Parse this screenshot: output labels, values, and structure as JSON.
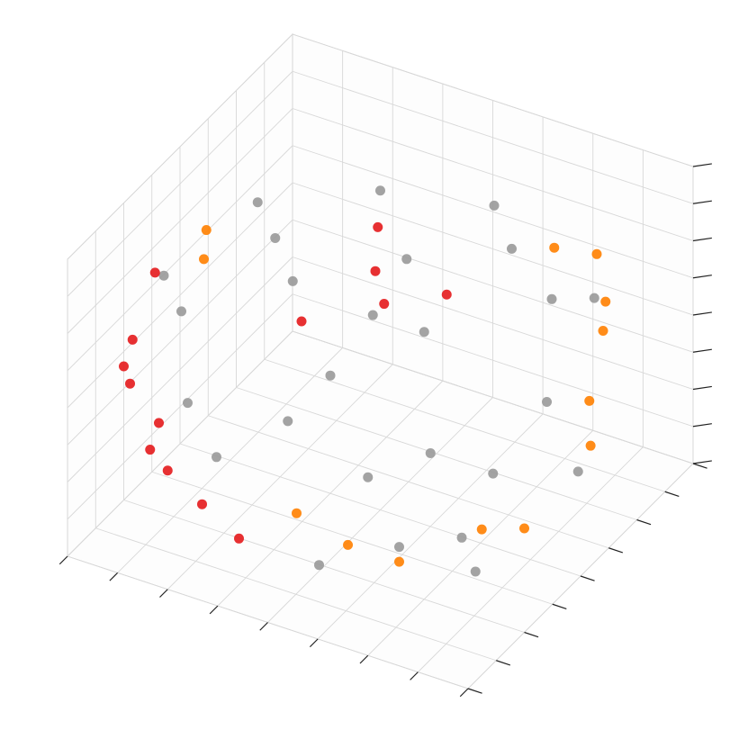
{
  "chart_data": {
    "type": "scatter3d",
    "grid": true,
    "xlim": [
      -1,
      1
    ],
    "ylim": [
      -1,
      1
    ],
    "zlim": [
      -1,
      1
    ],
    "xticks": [
      -1,
      -0.75,
      -0.5,
      -0.25,
      0,
      0.25,
      0.5,
      0.75,
      1
    ],
    "yticks": [
      -1,
      -0.75,
      -0.5,
      -0.25,
      0,
      0.25,
      0.5,
      0.75,
      1
    ],
    "zticks": [
      -1,
      -0.75,
      -0.5,
      -0.25,
      0,
      0.25,
      0.5,
      0.75,
      1
    ],
    "series": [
      {
        "color": "#999999",
        "x": [
          0.5,
          0.2,
          -0.3,
          0.8,
          0.9,
          0.1,
          -0.6,
          0.6,
          0.0,
          0.4,
          -0.2,
          1.0,
          0.7,
          -0.8,
          0.3,
          0.5,
          -0.1,
          0.9,
          1.1,
          0.6,
          -0.5,
          0.2,
          0.8,
          -0.4,
          0.3,
          0.7
        ],
        "y": [
          -0.5,
          -0.8,
          -0.4,
          0.1,
          -0.6,
          -1.0,
          -0.7,
          -0.9,
          0.0,
          0.3,
          -1.1,
          -0.3,
          -0.4,
          -0.5,
          -0.6,
          -1.0,
          -0.6,
          0.3,
          -0.2,
          0.1,
          -0.2,
          -0.9,
          -0.7,
          -1.0,
          -0.3,
          -0.8
        ],
        "z": [
          0.8,
          0.6,
          1.0,
          0.7,
          0.1,
          0.4,
          0.6,
          -0.3,
          1.15,
          1.0,
          0.1,
          0.4,
          -0.8,
          0.6,
          0.9,
          0.2,
          0.95,
          0.6,
          -0.1,
          0.95,
          1.0,
          -0.6,
          -0.3,
          0.3,
          1.05,
          0.3
        ]
      },
      {
        "color": "#ff7f00",
        "x": [
          1.0,
          1.1,
          0.9,
          1.0,
          0.6,
          0.9,
          -0.6,
          -0.7,
          0.7,
          0.4,
          1.05,
          0.2,
          0.8
        ],
        "y": [
          0.2,
          -0.1,
          0.4,
          -0.5,
          -0.9,
          -0.7,
          -0.5,
          -0.3,
          0.3,
          -1.0,
          0.0,
          -1.1,
          0.5
        ],
        "z": [
          0.5,
          0.3,
          0.5,
          -0.3,
          -0.4,
          -0.2,
          0.8,
          0.8,
          0.85,
          -0.3,
          -0.1,
          -0.1,
          0.7
        ]
      },
      {
        "color": "#e41a1c",
        "x": [
          -0.9,
          -1.0,
          -0.7,
          -0.8,
          -0.5,
          -0.9,
          -0.6,
          0.1,
          0.3,
          0.2,
          0.5,
          0.0,
          -0.2,
          -0.3
        ],
        "y": [
          -0.6,
          -0.5,
          -0.8,
          -0.8,
          -1.0,
          -0.4,
          -0.9,
          -0.2,
          -0.5,
          -0.4,
          -0.3,
          -0.7,
          -0.9,
          -1.05
        ],
        "z": [
          0.2,
          -0.1,
          -0.3,
          0.1,
          -0.2,
          0.5,
          0.0,
          1.1,
          0.9,
          1.0,
          0.9,
          0.8,
          -0.6,
          -0.3
        ]
      }
    ]
  }
}
